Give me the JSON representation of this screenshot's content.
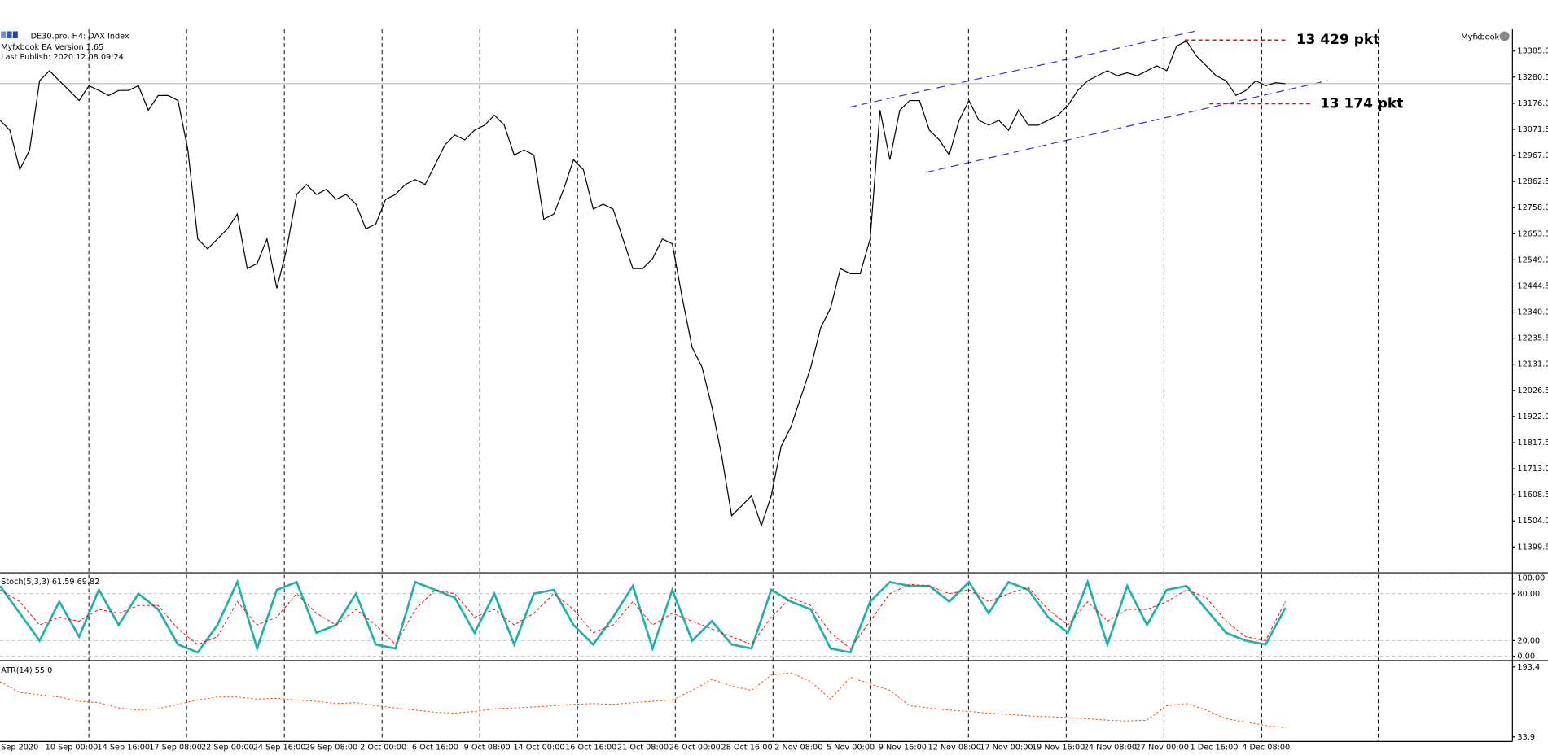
{
  "header": {
    "symbol": "DE30.pro, H4:  DAX Index",
    "ea_version": "Myfxbook EA Version 1.65",
    "last_publish": "Last Publish: 2020.12.08 09:24",
    "brand": "Myfxbook"
  },
  "chart_data": [
    {
      "type": "line",
      "color": "#000000",
      "values": [
        13108,
        13068,
        12910,
        12989,
        13266,
        13306,
        13266,
        13227,
        13187,
        13246,
        13227,
        13207,
        13227,
        13227,
        13246,
        13148,
        13207,
        13207,
        13187,
        12989,
        12633,
        12593,
        12633,
        12673,
        12732,
        12514,
        12534,
        12633,
        12435,
        12593,
        12811,
        12851,
        12811,
        12831,
        12791,
        12811,
        12772,
        12673,
        12692,
        12791,
        12811,
        12851,
        12870,
        12851,
        12930,
        13009,
        13049,
        13029,
        13068,
        13088,
        13128,
        13088,
        12969,
        12989,
        12969,
        12712,
        12732,
        12831,
        12950,
        12910,
        12752,
        12772,
        12752,
        12633,
        12514,
        12514,
        12554,
        12633,
        12613,
        12396,
        12198,
        12119,
        11960,
        11762,
        11525,
        11564,
        11604,
        11485,
        11604,
        11802,
        11881,
        12000,
        12119,
        12277,
        12356,
        12514,
        12494,
        12494,
        12633,
        13148,
        12950,
        13148,
        13187,
        13187,
        13068,
        13029,
        12969,
        13108,
        13187,
        13108,
        13088,
        13108,
        13068,
        13148,
        13088,
        13088,
        13108,
        13128,
        13167,
        13227,
        13266,
        13286,
        13306,
        13286,
        13298,
        13286,
        13306,
        13326,
        13306,
        13405,
        13425,
        13365,
        13326,
        13286,
        13266,
        13207,
        13227,
        13266,
        13246,
        13258,
        13254
      ],
      "ylim": [
        11304,
        13472
      ],
      "yticks": [
        {
          "value": 13385,
          "label": "13385.0"
        },
        {
          "value": 13280.5,
          "label": "13280.5"
        },
        {
          "value": 13176,
          "label": "13176.0"
        },
        {
          "value": 13071.5,
          "label": "13071.5"
        },
        {
          "value": 12967,
          "label": "12967.0"
        },
        {
          "value": 12862.5,
          "label": "12862.5"
        },
        {
          "value": 12758,
          "label": "12758.0"
        },
        {
          "value": 12653.5,
          "label": "12653.5"
        },
        {
          "value": 12549,
          "label": "12549.0"
        },
        {
          "value": 12444.5,
          "label": "12444.5"
        },
        {
          "value": 12340,
          "label": "12340.0"
        },
        {
          "value": 12235.5,
          "label": "12235.5"
        },
        {
          "value": 12131,
          "label": "12131.0"
        },
        {
          "value": 12026.5,
          "label": "12026.5"
        },
        {
          "value": 11922,
          "label": "11922.0"
        },
        {
          "value": 11817.5,
          "label": "11817.5"
        },
        {
          "value": 11713,
          "label": "11713.0"
        },
        {
          "value": 11608.5,
          "label": "11608.5"
        },
        {
          "value": 11504,
          "label": "11504.0"
        },
        {
          "value": 11399.5,
          "label": "11399.5"
        }
      ],
      "x_labels": [
        "Sep 2020",
        "10 Sep 00:00",
        "14 Sep 16:00",
        "17 Sep 08:00",
        "22 Sep 00:00",
        "24 Sep 16:00",
        "29 Sep 08:00",
        "2 Oct 00:00",
        "6 Oct 16:00",
        "9 Oct 08:00",
        "14 Oct 00:00",
        "16 Oct 16:00",
        "21 Oct 08:00",
        "26 Oct 00:00",
        "28 Oct 16:00",
        "2 Nov 08:00",
        "5 Nov 00:00",
        "9 Nov 16:00",
        "12 Nov 08:00",
        "17 Nov 00:00",
        "19 Nov 16:00",
        "24 Nov 08:00",
        "27 Nov 00:00",
        "1 Dec 16:00",
        "4 Dec 08:00"
      ],
      "levels": [
        {
          "value": 13429,
          "label": "13 429 pkt",
          "color": "#ff0000"
        },
        {
          "value": 13174,
          "label": "13 174 pkt",
          "color": "#ff0000"
        }
      ]
    },
    {
      "type": "line",
      "title": "Stoch(5,3,3) 61.59 69.82",
      "series": [
        {
          "color": "#20b2aa",
          "values": [
            90,
            55,
            20,
            70,
            25,
            85,
            40,
            80,
            60,
            15,
            5,
            40,
            95,
            10,
            85,
            95,
            30,
            40,
            80,
            15,
            10,
            95,
            85,
            75,
            30,
            80,
            15,
            80,
            85,
            40,
            15,
            50,
            90,
            10,
            85,
            20,
            45,
            15,
            10,
            85,
            70,
            60,
            10,
            5,
            70,
            95,
            90,
            90,
            70,
            95,
            55,
            95,
            85,
            50,
            30,
            95,
            15,
            90,
            40,
            85,
            90,
            60,
            30,
            20,
            15,
            62
          ]
        },
        {
          "color": "#ff0000",
          "values": [
            85,
            70,
            40,
            50,
            45,
            60,
            55,
            65,
            65,
            35,
            15,
            25,
            70,
            40,
            50,
            80,
            55,
            40,
            60,
            40,
            15,
            60,
            85,
            80,
            50,
            60,
            40,
            55,
            80,
            60,
            30,
            40,
            70,
            40,
            55,
            45,
            35,
            25,
            15,
            50,
            75,
            65,
            30,
            10,
            45,
            80,
            92,
            90,
            80,
            85,
            70,
            80,
            88,
            60,
            40,
            70,
            45,
            60,
            60,
            70,
            85,
            75,
            45,
            25,
            20,
            70
          ]
        }
      ],
      "ylim": [
        -3,
        103
      ],
      "yticks": [
        {
          "value": 100,
          "label": "100.00"
        },
        {
          "value": 80,
          "label": "80.00"
        },
        {
          "value": 20,
          "label": "20.00"
        },
        {
          "value": 0,
          "label": "0.00"
        }
      ]
    },
    {
      "type": "line",
      "title": "ATR(14) 55.0",
      "color": "#ff4500",
      "values": [
        160,
        135,
        130,
        125,
        115,
        112,
        100,
        95,
        98,
        108,
        118,
        125,
        125,
        120,
        122,
        118,
        115,
        110,
        112,
        105,
        100,
        95,
        90,
        88,
        92,
        98,
        100,
        102,
        105,
        108,
        110,
        108,
        112,
        115,
        118,
        140,
        165,
        150,
        140,
        175,
        180,
        160,
        120,
        170,
        155,
        140,
        105,
        100,
        95,
        92,
        88,
        85,
        82,
        80,
        78,
        75,
        72,
        70,
        72,
        105,
        110,
        95,
        75,
        68,
        60,
        55
      ],
      "ylim": [
        28,
        199
      ],
      "yticks": [
        193.4,
        33.9
      ]
    }
  ]
}
